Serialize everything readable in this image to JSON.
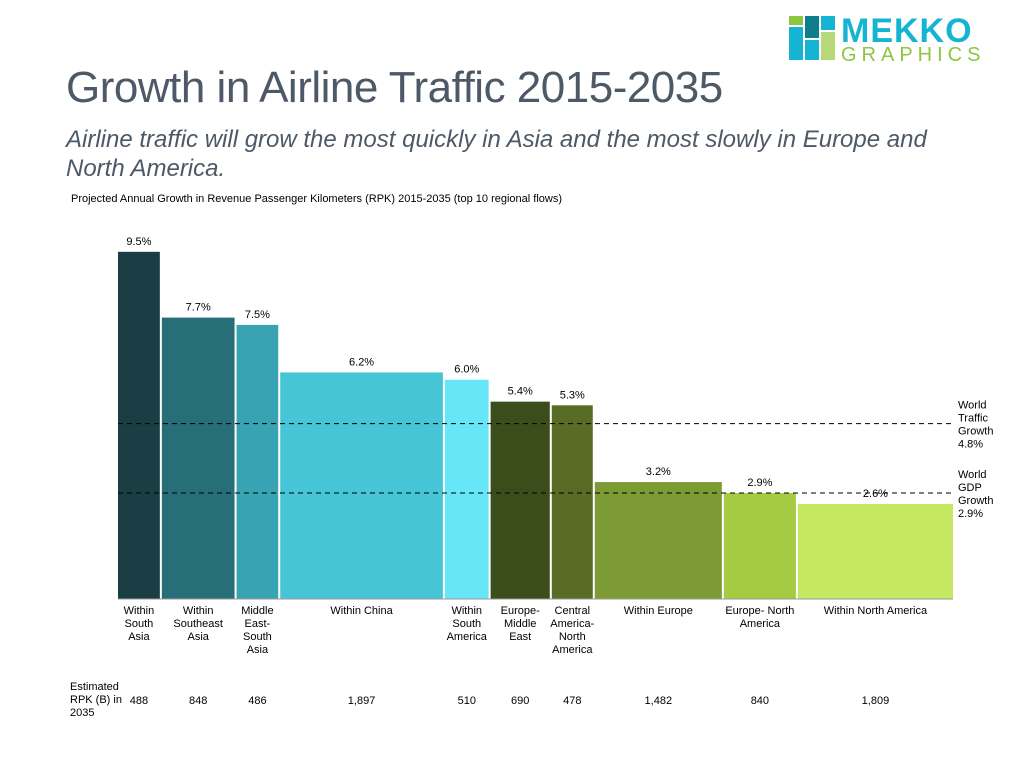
{
  "brand": {
    "word1": "MEKKO",
    "word2": "GRAPHICS",
    "logo_colors": [
      "#8dc63f",
      "#16b4d3",
      "#0f7d8c",
      "#b7d97a"
    ]
  },
  "header": {
    "title": "Growth in Airline Traffic 2015-2035",
    "subtitle": "Airline traffic will grow the most quickly in Asia and the most slowly in Europe and North America."
  },
  "chart_data": {
    "type": "bar",
    "variant": "variable-width (Marimekko) bar chart; bar width proportional to Estimated RPK (B) in 2035",
    "title": "Projected Annual Growth in Revenue Passenger Kilometers (RPK) 2015-2035 (top 10 regional flows)",
    "ylim": [
      0,
      11
    ],
    "grid": false,
    "categories": [
      {
        "label": [
          "Within",
          "South",
          "Asia"
        ],
        "growth": 9.5,
        "growth_label": "9.5%",
        "rpk": 488,
        "rpk_label": "488",
        "color": "#1a3e44"
      },
      {
        "label": [
          "Within",
          "Southeast",
          "Asia"
        ],
        "growth": 7.7,
        "growth_label": "7.7%",
        "rpk": 848,
        "rpk_label": "848",
        "color": "#266f78"
      },
      {
        "label": [
          "Middle",
          "East-",
          "South",
          "Asia"
        ],
        "growth": 7.5,
        "growth_label": "7.5%",
        "rpk": 486,
        "rpk_label": "486",
        "color": "#38a3b2"
      },
      {
        "label": [
          "Within China"
        ],
        "growth": 6.2,
        "growth_label": "6.2%",
        "rpk": 1897,
        "rpk_label": "1,897",
        "color": "#45c5d6"
      },
      {
        "label": [
          "Within",
          "South",
          "America"
        ],
        "growth": 6.0,
        "growth_label": "6.0%",
        "rpk": 510,
        "rpk_label": "510",
        "color": "#66e6f7"
      },
      {
        "label": [
          "Europe-",
          "Middle",
          "East"
        ],
        "growth": 5.4,
        "growth_label": "5.4%",
        "rpk": 690,
        "rpk_label": "690",
        "color": "#3c4d1c"
      },
      {
        "label": [
          "Central",
          "America-",
          "North",
          "America"
        ],
        "growth": 5.3,
        "growth_label": "5.3%",
        "rpk": 478,
        "rpk_label": "478",
        "color": "#596c26"
      },
      {
        "label": [
          "Within Europe"
        ],
        "growth": 3.2,
        "growth_label": "3.2%",
        "rpk": 1482,
        "rpk_label": "1,482",
        "color": "#7d9b35"
      },
      {
        "label": [
          "Europe- North",
          "America"
        ],
        "growth": 2.9,
        "growth_label": "2.9%",
        "rpk": 840,
        "rpk_label": "840",
        "color": "#a5cb42"
      },
      {
        "label": [
          "Within North America"
        ],
        "growth": 2.6,
        "growth_label": "2.6%",
        "rpk": 1809,
        "rpk_label": "1,809",
        "color": "#c5e862"
      }
    ],
    "reference_lines": [
      {
        "label": [
          "World",
          "Traffic",
          "Growth",
          "4.8%"
        ],
        "value": 4.8
      },
      {
        "label": [
          "World",
          "GDP",
          "Growth",
          "2.9%"
        ],
        "value": 2.9
      }
    ],
    "rpk_row_label": "Estimated RPK (B) in 2035"
  }
}
